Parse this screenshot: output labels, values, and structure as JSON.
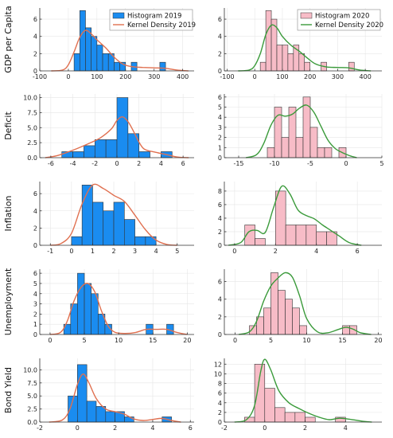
{
  "colors": {
    "hist2019": "#1a8cf0",
    "hist2020": "#f7bcc7",
    "kde2019": "#e07050",
    "kde2020": "#3a9a3a",
    "overlay_blue": "#5a5fd0",
    "overlay_tan": "#d9c8b8",
    "glow_cyan": "#6ff5d6"
  },
  "chart_data": [
    {
      "type": "bar",
      "row": 0,
      "col": 0,
      "ylabel": "GDP per Capita",
      "xlim": [
        -100,
        440
      ],
      "ylim": [
        0,
        7.3
      ],
      "xticks": [
        -100,
        0,
        100,
        200,
        300,
        400
      ],
      "xtick_labels": [
        "-100",
        "0",
        "100",
        "200",
        "300",
        "400"
      ],
      "yticks": [
        0,
        2,
        4,
        6
      ],
      "ytick_labels": [
        "0",
        "2",
        "4",
        "6"
      ],
      "bin_width": 20,
      "bins_left": [
        20,
        40,
        60,
        80,
        100,
        120,
        140,
        160,
        180,
        220,
        320
      ],
      "counts": [
        2,
        7,
        5,
        4,
        3,
        2,
        2,
        1,
        1,
        1,
        1
      ],
      "hist_series": "Histogram 2019",
      "kde_series": "Kernel Density 2019",
      "kde": {
        "x": [
          -60,
          -20,
          0,
          20,
          40,
          60,
          80,
          100,
          130,
          160,
          190,
          220,
          260,
          300,
          340,
          380,
          420
        ],
        "y": [
          0,
          0.1,
          0.7,
          2.2,
          3.9,
          4.7,
          4.3,
          3.6,
          2.7,
          1.6,
          0.8,
          0.5,
          0.4,
          0.35,
          0.3,
          0.1,
          0
        ]
      },
      "legend": {
        "position": "top-right",
        "entries": [
          "Histogram 2019",
          "Kernel Density 2019"
        ]
      }
    },
    {
      "type": "bar",
      "row": 0,
      "col": 1,
      "ylabel": "",
      "xlim": [
        -110,
        460
      ],
      "ylim": [
        0,
        7.3
      ],
      "xticks": [
        -100,
        0,
        100,
        200,
        300,
        400
      ],
      "xtick_labels": [
        "-100",
        "0",
        "100",
        "200",
        "300",
        "400"
      ],
      "yticks": [
        0,
        2,
        4,
        6
      ],
      "ytick_labels": [
        "0",
        "2",
        "4",
        "6"
      ],
      "bin_width": 20,
      "bins_left": [
        20,
        40,
        60,
        80,
        100,
        120,
        140,
        160,
        180,
        240,
        340
      ],
      "counts": [
        1,
        7,
        6,
        3,
        3,
        2,
        3,
        2,
        1,
        1,
        1
      ],
      "hist_series": "Histogram 2020",
      "kde_series": "Kernel Density 2020",
      "kde": {
        "x": [
          -60,
          -20,
          0,
          20,
          40,
          60,
          80,
          100,
          130,
          160,
          190,
          220,
          260,
          300,
          340,
          380,
          420
        ],
        "y": [
          0,
          0.1,
          0.6,
          2.0,
          4.2,
          5.3,
          5.0,
          4.0,
          3.0,
          2.3,
          1.5,
          0.8,
          0.45,
          0.4,
          0.35,
          0.1,
          0
        ]
      },
      "legend": {
        "position": "top-right",
        "entries": [
          "Histogram 2020",
          "Kernel Density 2020"
        ]
      }
    },
    {
      "type": "bar",
      "row": 1,
      "col": 0,
      "ylabel": "Deficit",
      "xlim": [
        -7,
        7
      ],
      "ylim": [
        0,
        10.6
      ],
      "xticks": [
        -6,
        -4,
        -2,
        0,
        2,
        4,
        6
      ],
      "xtick_labels": [
        "-6",
        "-4",
        "-2",
        "0",
        "2",
        "4",
        "6"
      ],
      "yticks": [
        0,
        2.5,
        5,
        7.5,
        10
      ],
      "ytick_labels": [
        "0.0",
        "2.5",
        "5.0",
        "7.5",
        "10.0"
      ],
      "bin_width": 1,
      "bins_left": [
        -5,
        -4,
        -3,
        -2,
        -1,
        0,
        1,
        2,
        3,
        4
      ],
      "counts": [
        1,
        1,
        2,
        3,
        3,
        10,
        4,
        1,
        0,
        1
      ],
      "hist_series": "Histogram 2019",
      "kde_series": "Kernel Density 2019",
      "kde": {
        "x": [
          -6.5,
          -5.5,
          -4.5,
          -3.5,
          -2.5,
          -1.5,
          -0.5,
          0,
          0.5,
          1,
          1.5,
          2,
          2.5,
          3.5,
          4.5,
          5.5,
          6.5
        ],
        "y": [
          0,
          0.3,
          0.9,
          1.6,
          2.4,
          3.3,
          4.8,
          6.2,
          6.8,
          6.0,
          4.4,
          2.6,
          1.4,
          0.9,
          0.5,
          0.1,
          0
        ]
      }
    },
    {
      "type": "bar",
      "row": 1,
      "col": 1,
      "ylabel": "",
      "xlim": [
        -17,
        5
      ],
      "ylim": [
        0,
        6.3
      ],
      "xticks": [
        -15,
        -10,
        -5,
        0,
        5
      ],
      "xtick_labels": [
        "-15",
        "-10",
        "-5",
        "0",
        "5"
      ],
      "yticks": [
        0,
        1,
        2,
        3,
        4,
        5,
        6
      ],
      "ytick_labels": [
        "0",
        "1",
        "2",
        "3",
        "4",
        "5",
        "6"
      ],
      "bin_width": 1,
      "bins_left": [
        -11,
        -10,
        -9,
        -8,
        -7,
        -6,
        -5,
        -4,
        -3,
        -2,
        -1
      ],
      "counts": [
        1,
        5,
        2,
        5,
        2,
        6,
        3,
        1,
        1,
        0,
        1
      ],
      "hist_series": "Histogram 2020",
      "kde_series": "Kernel Density 2020",
      "kde": {
        "x": [
          -14,
          -12.5,
          -11.5,
          -10.5,
          -9.5,
          -8.5,
          -7.5,
          -6.5,
          -5.5,
          -4.5,
          -3.5,
          -2.5,
          -1.5,
          -0.5,
          0.5,
          1.5
        ],
        "y": [
          0,
          0.3,
          1.4,
          3.2,
          4.2,
          4.1,
          4.3,
          4.9,
          5.2,
          4.5,
          3.1,
          1.7,
          0.9,
          0.5,
          0.2,
          0
        ]
      }
    },
    {
      "type": "bar",
      "row": 2,
      "col": 0,
      "ylabel": "Inflation",
      "xlim": [
        -1.5,
        5.8
      ],
      "ylim": [
        0,
        7.4
      ],
      "xticks": [
        -1,
        0,
        1,
        2,
        3,
        4,
        5
      ],
      "xtick_labels": [
        "-1",
        "0",
        "1",
        "2",
        "3",
        "4",
        "5"
      ],
      "yticks": [
        0,
        2,
        4,
        6
      ],
      "ytick_labels": [
        "0",
        "2",
        "4",
        "6"
      ],
      "bin_width": 0.5,
      "bins_left": [
        0,
        0.5,
        1,
        1.5,
        2,
        2.5,
        3,
        3.5
      ],
      "counts": [
        1,
        7,
        5,
        4,
        5,
        3,
        1,
        1
      ],
      "hist_series": "Histogram 2019",
      "kde_series": "Kernel Density 2019",
      "kde": {
        "x": [
          -1,
          -0.5,
          0,
          0.5,
          1,
          1.5,
          2,
          2.5,
          3,
          3.5,
          4,
          4.5,
          5
        ],
        "y": [
          0,
          0.2,
          1.4,
          4.8,
          7.0,
          6.6,
          5.8,
          5.1,
          3.5,
          1.8,
          0.6,
          0.1,
          0
        ]
      }
    },
    {
      "type": "bar",
      "row": 2,
      "col": 1,
      "ylabel": "",
      "xlim": [
        -0.5,
        7.2
      ],
      "ylim": [
        0,
        9.4
      ],
      "xticks": [
        0,
        2,
        4,
        6
      ],
      "xtick_labels": [
        "0",
        "2",
        "4",
        "6"
      ],
      "yticks": [
        0,
        2,
        4,
        6,
        8
      ],
      "ytick_labels": [
        "0",
        "2",
        "4",
        "6",
        "8"
      ],
      "bin_width": 0.5,
      "bins_left": [
        0.5,
        1,
        1.5,
        2,
        2.5,
        3,
        3.5,
        4,
        4.5
      ],
      "counts": [
        3,
        1,
        0,
        8,
        3,
        3,
        3,
        2,
        2
      ],
      "hist_series": "Histogram 2020",
      "kde_series": "Kernel Density 2020",
      "kde": {
        "x": [
          -0.3,
          0.3,
          0.7,
          1.1,
          1.5,
          1.9,
          2.3,
          2.7,
          3.1,
          3.5,
          3.9,
          4.3,
          4.7,
          5.1,
          5.6,
          6.2
        ],
        "y": [
          0,
          0.4,
          2.0,
          2.2,
          1.9,
          5.5,
          8.7,
          7.6,
          5.2,
          4.4,
          3.9,
          3.0,
          2.2,
          1.4,
          0.4,
          0
        ]
      }
    },
    {
      "type": "bar",
      "row": 3,
      "col": 0,
      "ylabel": "Unemployment",
      "xlim": [
        -1.5,
        21
      ],
      "ylim": [
        0,
        6.4
      ],
      "xticks": [
        0,
        5,
        10,
        15,
        20
      ],
      "xtick_labels": [
        "0",
        "5",
        "10",
        "15",
        "20"
      ],
      "yticks": [
        0,
        1,
        2,
        3,
        4,
        5,
        6
      ],
      "ytick_labels": [
        "0",
        "1",
        "2",
        "3",
        "4",
        "5",
        "6"
      ],
      "bin_width": 1,
      "bins_left": [
        2,
        3,
        4,
        5,
        6,
        7,
        8,
        14,
        17
      ],
      "counts": [
        1,
        3,
        6,
        5,
        4,
        2,
        1,
        1,
        1
      ],
      "hist_series": "Histogram 2019",
      "kde_series": "Kernel Density 2019",
      "kde": {
        "x": [
          0,
          1.5,
          2.5,
          3.5,
          4.5,
          5.5,
          6.5,
          7.5,
          8.5,
          9.5,
          11,
          12.5,
          14,
          15.5,
          17,
          18.5,
          20
        ],
        "y": [
          0,
          0.2,
          1.3,
          3.3,
          4.6,
          5.0,
          4.2,
          2.3,
          0.8,
          0.2,
          0.1,
          0.2,
          0.5,
          0.5,
          0.5,
          0.2,
          0
        ]
      }
    },
    {
      "type": "bar",
      "row": 3,
      "col": 1,
      "ylabel": "",
      "xlim": [
        -1.5,
        20.5
      ],
      "ylim": [
        0,
        7.4
      ],
      "xticks": [
        0,
        5,
        10,
        15,
        20
      ],
      "xtick_labels": [
        "0",
        "5",
        "10",
        "15",
        "20"
      ],
      "yticks": [
        0,
        2,
        4,
        6
      ],
      "ytick_labels": [
        "0",
        "2",
        "4",
        "6"
      ],
      "bin_width": 1,
      "bins_left": [
        2,
        3,
        4,
        5,
        6,
        7,
        8,
        9,
        15,
        16
      ],
      "counts": [
        1,
        2,
        3,
        7,
        5,
        4,
        3,
        1,
        1,
        1
      ],
      "hist_series": "Histogram 2020",
      "kde_series": "Kernel Density 2020",
      "kde": {
        "x": [
          0.5,
          2,
          3,
          4,
          5,
          6,
          7,
          8,
          9,
          10,
          11.5,
          13,
          14.5,
          15.5,
          16.5,
          17.5,
          19
        ],
        "y": [
          0,
          0.3,
          1.5,
          3.8,
          5.5,
          6.4,
          7.0,
          6.5,
          4.4,
          1.8,
          0.3,
          0.2,
          0.6,
          0.8,
          0.6,
          0.2,
          0
        ]
      }
    },
    {
      "type": "bar",
      "row": 4,
      "col": 0,
      "ylabel": "Bond Yield",
      "xlim": [
        -2,
        6.2
      ],
      "ylim": [
        0,
        12.2
      ],
      "xticks": [
        -2,
        0,
        2,
        4,
        6
      ],
      "xtick_labels": [
        "-2",
        "0",
        "2",
        "4",
        "6"
      ],
      "yticks": [
        0,
        2.5,
        5,
        7.5,
        10
      ],
      "ytick_labels": [
        "0.0",
        "2.5",
        "5.0",
        "7.5",
        "10.0"
      ],
      "bin_width": 0.5,
      "bins_left": [
        -0.5,
        0,
        0.5,
        1,
        1.5,
        2,
        2.5,
        4.5
      ],
      "counts": [
        5,
        11,
        4,
        3,
        2,
        2,
        1,
        1
      ],
      "hist_series": "Histogram 2019",
      "kde_series": "Kernel Density 2019",
      "kde": {
        "x": [
          -1.5,
          -0.8,
          -0.4,
          0,
          0.3,
          0.6,
          1,
          1.5,
          2,
          2.5,
          3,
          3.5,
          4,
          4.5,
          5,
          5.5
        ],
        "y": [
          0,
          0.4,
          2.5,
          7.2,
          9.2,
          7.6,
          4.5,
          2.5,
          2.0,
          1.5,
          0.6,
          0.3,
          0.5,
          0.7,
          0.3,
          0
        ]
      }
    },
    {
      "type": "bar",
      "row": 4,
      "col": 1,
      "ylabel": "",
      "xlim": [
        -2,
        5.8
      ],
      "ylim": [
        0,
        13.2
      ],
      "xticks": [
        -2,
        0,
        2,
        4
      ],
      "xtick_labels": [
        "-2",
        "0",
        "2",
        "4"
      ],
      "yticks": [
        0,
        2,
        4,
        6,
        8,
        10,
        12
      ],
      "ytick_labels": [
        "0",
        "2",
        "4",
        "6",
        "8",
        "10",
        "12"
      ],
      "bin_width": 0.5,
      "bins_left": [
        -1,
        -0.5,
        0,
        0.5,
        1,
        1.5,
        2,
        3.5
      ],
      "counts": [
        1,
        12,
        7,
        3,
        2,
        2,
        1,
        1
      ],
      "hist_series": "Histogram 2020",
      "kde_series": "Kernel Density 2020",
      "kde": {
        "x": [
          -1.5,
          -0.9,
          -0.5,
          -0.2,
          0,
          0.3,
          0.7,
          1.2,
          1.7,
          2.2,
          2.7,
          3.2,
          3.7,
          4.2,
          4.8,
          5.3
        ],
        "y": [
          0,
          0.5,
          3.5,
          10.5,
          13.0,
          10.8,
          6.5,
          4.0,
          2.8,
          1.8,
          1.0,
          0.5,
          0.8,
          0.6,
          0.2,
          0
        ]
      }
    }
  ]
}
